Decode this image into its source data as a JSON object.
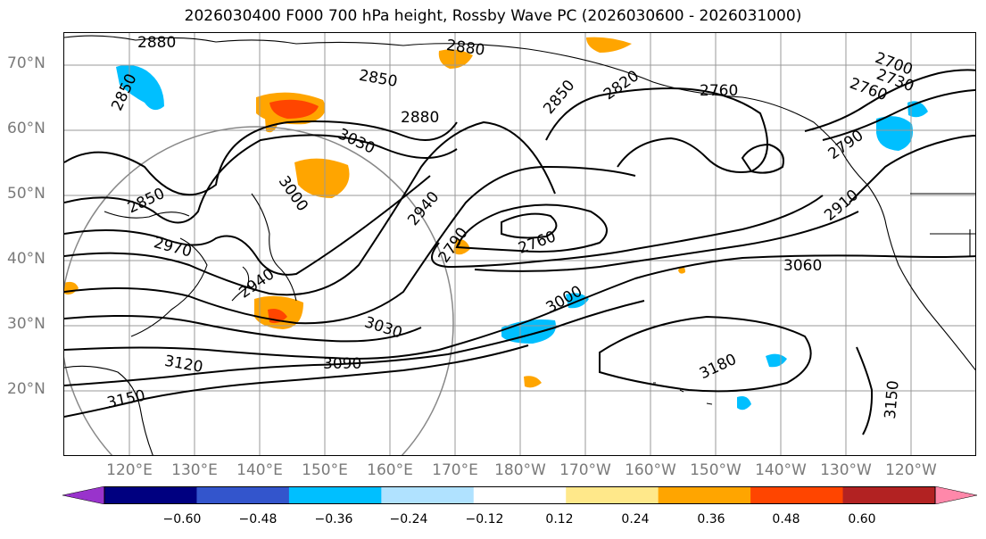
{
  "title": "2026030400 F000 700 hPa height, Rossby Wave PC (2026030600 - 2026031000)",
  "lat_labels": [
    "70°N",
    "60°N",
    "50°N",
    "40°N",
    "30°N",
    "20°N"
  ],
  "lon_labels": [
    "120°E",
    "130°E",
    "140°E",
    "150°E",
    "160°E",
    "170°E",
    "180°W",
    "170°W",
    "160°W",
    "150°W",
    "140°W",
    "130°W",
    "120°W"
  ],
  "contour_labels": [
    "2880",
    "2880",
    "2850",
    "2850",
    "2880",
    "3030",
    "2850",
    "3000",
    "2940",
    "2970",
    "2940",
    "2790",
    "2760",
    "2820",
    "2850",
    "2760",
    "2730",
    "2700",
    "2760",
    "2790",
    "2910",
    "3060",
    "3000",
    "3030",
    "3090",
    "3120",
    "3150",
    "3180",
    "3150"
  ],
  "colorbar": {
    "ticks": [
      "−0.60",
      "−0.48",
      "−0.36",
      "−0.24",
      "−0.12",
      "0.12",
      "0.24",
      "0.36",
      "0.48",
      "0.60"
    ],
    "colors": [
      "#9933cc",
      "#000080",
      "#3355cc",
      "#00bfff",
      "#b0e2ff",
      "#ffffff",
      "#ffe88a",
      "#ffa500",
      "#ff4500",
      "#b22222",
      "#ff88aa"
    ]
  }
}
